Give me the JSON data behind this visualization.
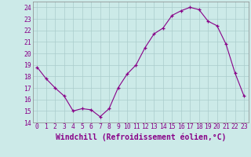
{
  "x": [
    0,
    1,
    2,
    3,
    4,
    5,
    6,
    7,
    8,
    9,
    10,
    11,
    12,
    13,
    14,
    15,
    16,
    17,
    18,
    19,
    20,
    21,
    22,
    23
  ],
  "y": [
    18.8,
    17.8,
    17.0,
    16.3,
    15.0,
    15.2,
    15.1,
    14.5,
    15.2,
    17.0,
    18.2,
    19.0,
    20.5,
    21.7,
    22.2,
    23.3,
    23.7,
    24.0,
    23.8,
    22.8,
    22.4,
    20.8,
    18.3,
    16.3
  ],
  "line_color": "#880088",
  "marker_color": "#880088",
  "bg_color": "#cceae8",
  "grid_color": "#aacccc",
  "xlabel": "Windchill (Refroidissement éolien,°C)",
  "xlabel_color": "#880088",
  "ylim": [
    14,
    24.5
  ],
  "yticks": [
    14,
    15,
    16,
    17,
    18,
    19,
    20,
    21,
    22,
    23,
    24
  ],
  "xticks": [
    0,
    1,
    2,
    3,
    4,
    5,
    6,
    7,
    8,
    9,
    10,
    11,
    12,
    13,
    14,
    15,
    16,
    17,
    18,
    19,
    20,
    21,
    22,
    23
  ],
  "tick_label_fontsize": 5.8,
  "xlabel_fontsize": 7.0,
  "figwidth": 3.2,
  "figheight": 2.0,
  "dpi": 100
}
